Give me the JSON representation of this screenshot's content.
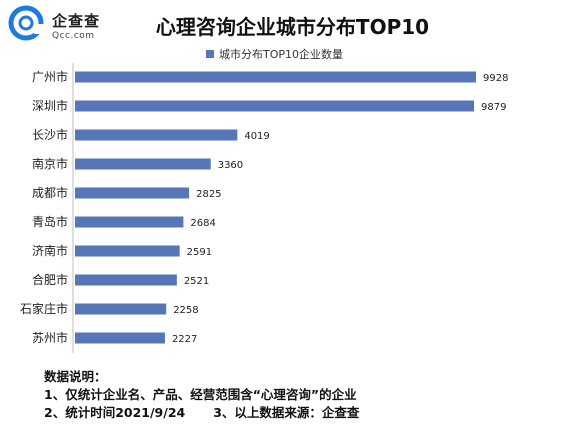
{
  "logo": {
    "brand": "企查查",
    "domain": "Qcc.com"
  },
  "chart_data": {
    "type": "bar",
    "orientation": "horizontal",
    "title": "心理咨询企业城市分布TOP10",
    "series": [
      {
        "name": "城市分布TOP10企业数量",
        "color": "#5676b8"
      }
    ],
    "categories": [
      "广州市",
      "深圳市",
      "长沙市",
      "南京市",
      "成都市",
      "青岛市",
      "济南市",
      "合肥市",
      "石家庄市",
      "苏州市"
    ],
    "values": [
      9928,
      9879,
      4019,
      3360,
      2825,
      2684,
      2591,
      2521,
      2258,
      2227
    ],
    "grid": false,
    "legend_position": "top"
  },
  "notes": {
    "heading": "数据说明：",
    "line1": "1、仅统计企业名、产品、经营范围含“心理咨询”的企业",
    "line2a": "2、统计时间2021/9/24",
    "line2b": "3、以上数据来源：企查查"
  }
}
